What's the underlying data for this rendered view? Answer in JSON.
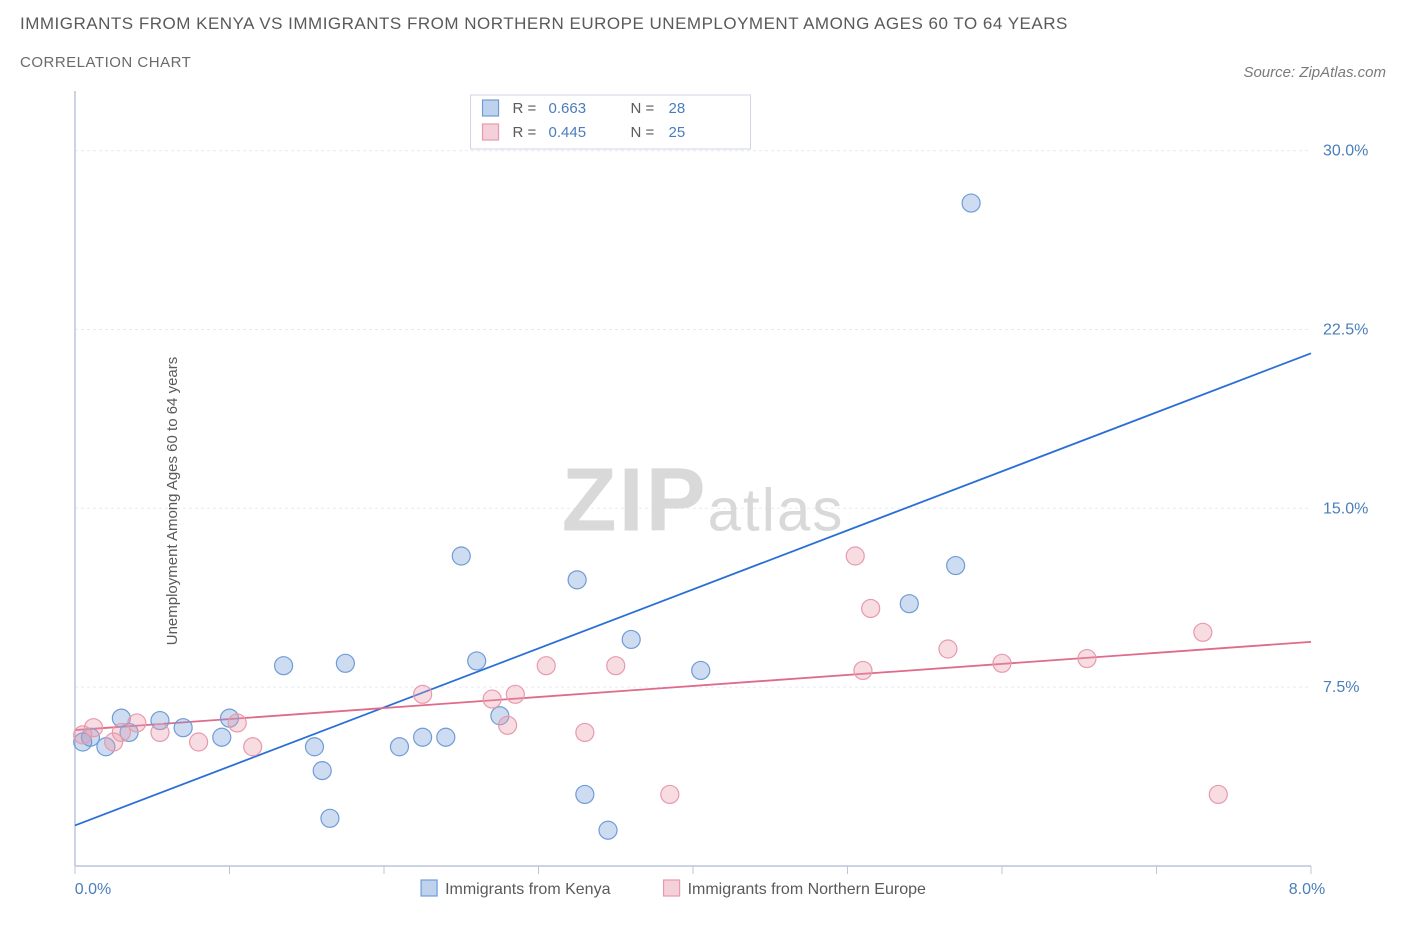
{
  "title": "IMMIGRANTS FROM KENYA VS IMMIGRANTS FROM NORTHERN EUROPE UNEMPLOYMENT AMONG AGES 60 TO 64 YEARS",
  "subtitle": "CORRELATION CHART",
  "source": "Source: ZipAtlas.com",
  "ylabel": "Unemployment Among Ages 60 to 64 years",
  "watermark_a": "ZIP",
  "watermark_b": "atlas",
  "chart": {
    "type": "scatter",
    "background_color": "#ffffff",
    "grid_color": "#e6eaf2",
    "frame_color": "#bcc6da",
    "xlim": [
      0,
      8
    ],
    "ylim": [
      0,
      32.5
    ],
    "xtick_labels": [
      "0.0%",
      "8.0%"
    ],
    "xtick_positions": [
      0,
      8
    ],
    "xtick_minor": [
      1,
      2,
      3,
      4,
      5,
      6,
      7
    ],
    "ytick_labels": [
      "7.5%",
      "15.0%",
      "22.5%",
      "30.0%"
    ],
    "ytick_positions": [
      7.5,
      15,
      22.5,
      30
    ],
    "marker_radius": 9,
    "marker_stroke_width": 1.2,
    "marker_fill_opacity": 0.35,
    "trend_line_width": 1.8,
    "series": [
      {
        "name": "Immigrants from Kenya",
        "color": "#6f9cd6",
        "line_color": "#2a6fd6",
        "R": "0.663",
        "N": "28",
        "trend": {
          "x1": 0,
          "y1": 1.7,
          "x2": 8,
          "y2": 21.5
        },
        "points": [
          [
            0.05,
            5.2
          ],
          [
            0.1,
            5.4
          ],
          [
            0.2,
            5.0
          ],
          [
            0.3,
            6.2
          ],
          [
            0.35,
            5.6
          ],
          [
            0.55,
            6.1
          ],
          [
            0.7,
            5.8
          ],
          [
            0.95,
            5.4
          ],
          [
            1.0,
            6.2
          ],
          [
            1.35,
            8.4
          ],
          [
            1.55,
            5.0
          ],
          [
            1.6,
            4.0
          ],
          [
            1.65,
            2.0
          ],
          [
            1.75,
            8.5
          ],
          [
            2.1,
            5.0
          ],
          [
            2.25,
            5.4
          ],
          [
            2.4,
            5.4
          ],
          [
            2.5,
            13.0
          ],
          [
            2.6,
            8.6
          ],
          [
            2.75,
            6.3
          ],
          [
            3.25,
            12.0
          ],
          [
            3.3,
            3.0
          ],
          [
            3.45,
            1.5
          ],
          [
            3.6,
            9.5
          ],
          [
            4.05,
            8.2
          ],
          [
            5.4,
            11.0
          ],
          [
            5.7,
            12.6
          ],
          [
            5.8,
            27.8
          ]
        ]
      },
      {
        "name": "Immigrants from Northern Europe",
        "color": "#e79aad",
        "line_color": "#e06a8a",
        "R": "0.445",
        "N": "25",
        "trend": {
          "x1": 0,
          "y1": 5.7,
          "x2": 8,
          "y2": 9.4
        },
        "points": [
          [
            0.05,
            5.5
          ],
          [
            0.12,
            5.8
          ],
          [
            0.25,
            5.2
          ],
          [
            0.3,
            5.6
          ],
          [
            0.4,
            6.0
          ],
          [
            0.55,
            5.6
          ],
          [
            0.8,
            5.2
          ],
          [
            1.05,
            6.0
          ],
          [
            1.15,
            5.0
          ],
          [
            2.25,
            7.2
          ],
          [
            2.7,
            7.0
          ],
          [
            2.8,
            5.9
          ],
          [
            2.85,
            7.2
          ],
          [
            3.05,
            8.4
          ],
          [
            3.3,
            5.6
          ],
          [
            3.5,
            8.4
          ],
          [
            3.85,
            3.0
          ],
          [
            5.05,
            13.0
          ],
          [
            5.1,
            8.2
          ],
          [
            5.15,
            10.8
          ],
          [
            5.65,
            9.1
          ],
          [
            6.0,
            8.5
          ],
          [
            6.55,
            8.7
          ],
          [
            7.3,
            9.8
          ],
          [
            7.4,
            3.0
          ]
        ]
      }
    ],
    "stats_legend": {
      "labels": {
        "R": "R =",
        "N": "N ="
      }
    },
    "bottom_legend": {
      "swatch_size": 16
    }
  }
}
